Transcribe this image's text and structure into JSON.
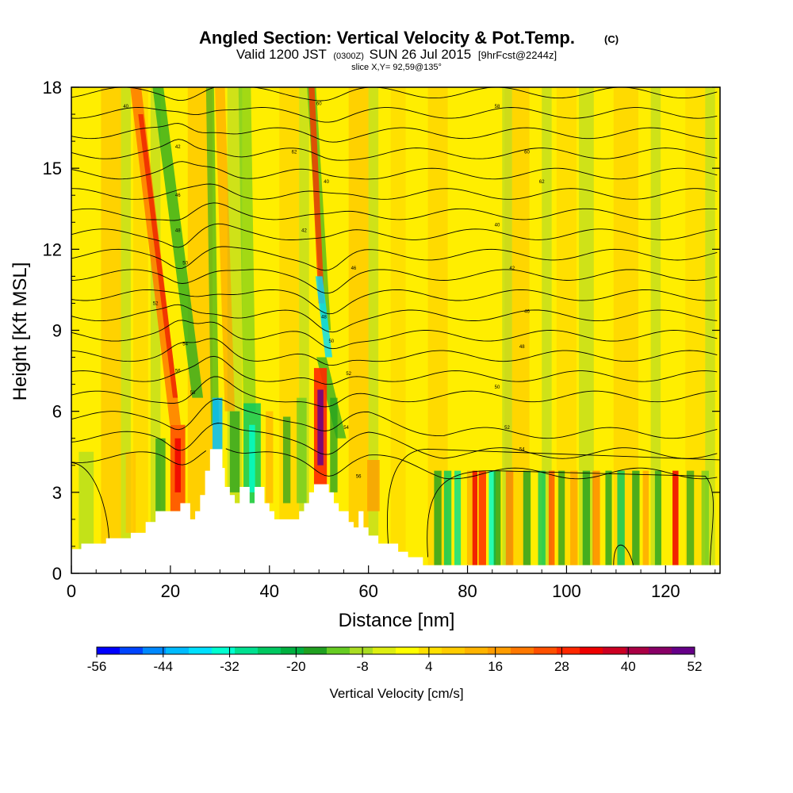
{
  "chart_data": {
    "type": "heatmap",
    "title": "Angled Section: Vertical Velocity & Pot.Temp.",
    "title_units": "(C)",
    "subtitle": {
      "valid": "Valid 1200 JST",
      "utc": "(0300Z)",
      "date": "SUN 26 Jul 2015",
      "forecast": "[9hrFcst@2244z]"
    },
    "slice": "slice X,Y= 92,59@135°",
    "xlabel": "Distance [nm]",
    "ylabel": "Height [Kft MSL]",
    "xlim": [
      0,
      131
    ],
    "ylim": [
      0,
      18
    ],
    "xticks": [
      "0",
      "20",
      "40",
      "60",
      "80",
      "100",
      "120"
    ],
    "yticks": [
      "0",
      "3",
      "6",
      "9",
      "12",
      "15",
      "18"
    ],
    "colorbar": {
      "label": "Vertical Velocity [cm/s]",
      "min": -56,
      "max": 52,
      "ticks": [
        "-56",
        "-44",
        "-32",
        "-20",
        "-8",
        "4",
        "16",
        "28",
        "40",
        "52"
      ],
      "colors": [
        "#0000ff",
        "#0044ff",
        "#0088ff",
        "#00bbff",
        "#00e0ff",
        "#00ffd0",
        "#00e090",
        "#00c860",
        "#00b040",
        "#20a020",
        "#66cc22",
        "#aadd22",
        "#ddee11",
        "#ffff00",
        "#ffe000",
        "#ffcc00",
        "#ffb400",
        "#ff9c00",
        "#ff7800",
        "#ff5000",
        "#ff2800",
        "#ee0000",
        "#cc0022",
        "#aa0044",
        "#880066",
        "#660088"
      ]
    },
    "updraft_columns_x": [
      21,
      50,
      85,
      122
    ],
    "downdraft_columns_x": [
      30,
      36,
      52,
      78,
      86
    ],
    "theta_contour_labels": [
      "40",
      "42",
      "46",
      "48",
      "50",
      "52",
      "54",
      "56",
      "58",
      "60",
      "62"
    ],
    "grid": false,
    "legend": "colorbar-bottom"
  }
}
